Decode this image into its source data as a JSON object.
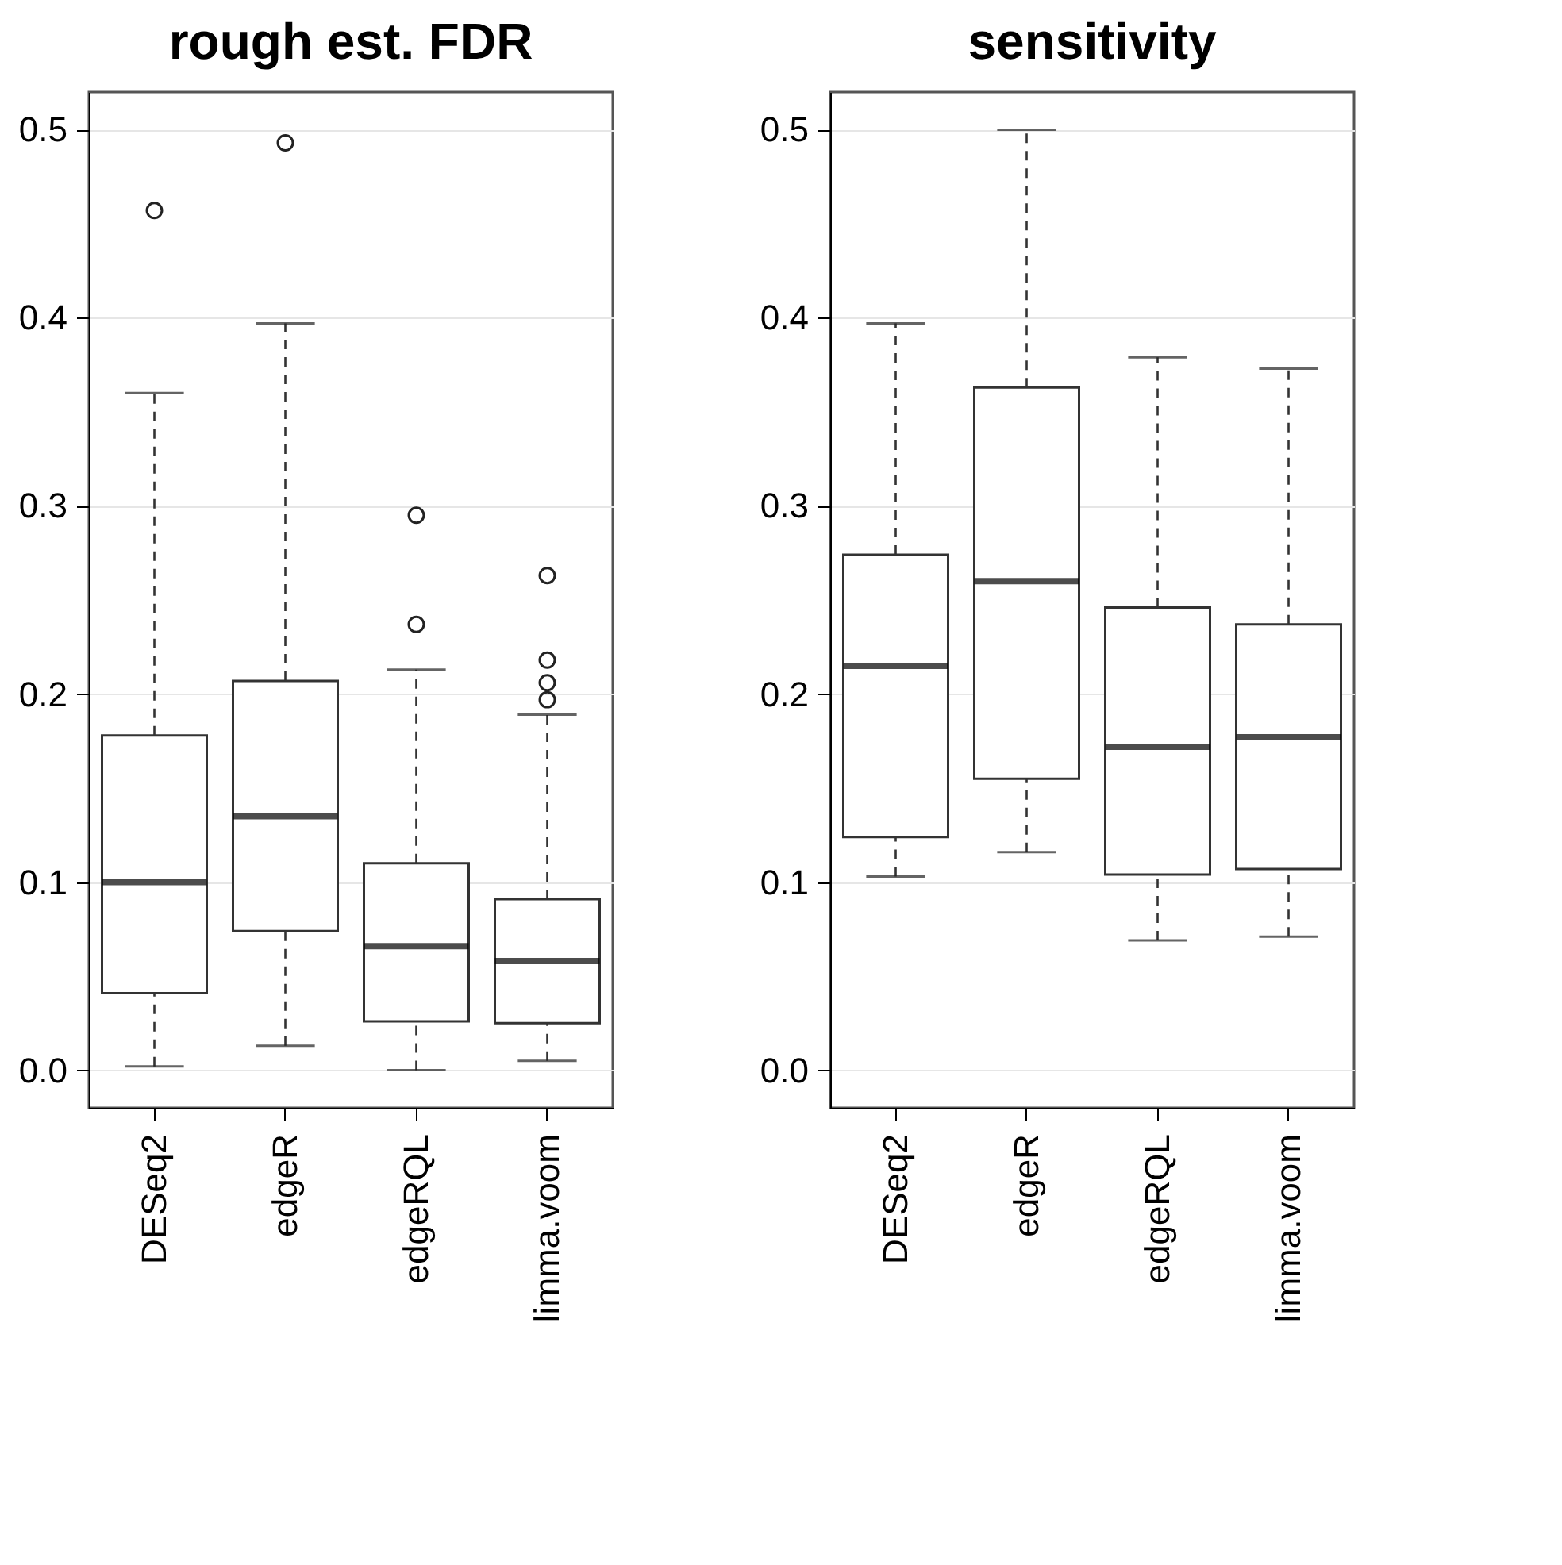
{
  "chart_data": [
    {
      "type": "box",
      "title": "rough est. FDR",
      "categories": [
        "DESeq2",
        "edgeR",
        "edgeRQL",
        "limma.voom"
      ],
      "ylim": [
        -0.02,
        0.52
      ],
      "yticks": [
        {
          "value": 0,
          "label": "0.0"
        },
        0.1,
        0.2,
        0.3,
        0.4,
        0.5
      ],
      "grid": "y",
      "boxes": [
        {
          "low": 0.002,
          "q1": 0.041,
          "median": 0.1,
          "q3": 0.178,
          "high": 0.36,
          "outliers": [
            0.457
          ]
        },
        {
          "low": 0.013,
          "q1": 0.074,
          "median": 0.135,
          "q3": 0.207,
          "high": 0.397,
          "outliers": [
            0.493
          ]
        },
        {
          "low": 0.0,
          "q1": 0.026,
          "median": 0.066,
          "q3": 0.11,
          "high": 0.213,
          "outliers": [
            0.237,
            0.295
          ]
        },
        {
          "low": 0.005,
          "q1": 0.025,
          "median": 0.058,
          "q3": 0.091,
          "high": 0.189,
          "outliers": [
            0.197,
            0.206,
            0.218,
            0.263
          ]
        }
      ]
    },
    {
      "type": "box",
      "title": "sensitivity",
      "categories": [
        "DESeq2",
        "edgeR",
        "edgeRQL",
        "limma.voom"
      ],
      "ylim": [
        -0.02,
        0.52
      ],
      "yticks": [
        {
          "value": 0,
          "label": "0.0"
        },
        0.1,
        0.2,
        0.3,
        0.4,
        0.5
      ],
      "grid": "y",
      "boxes": [
        {
          "low": 0.103,
          "q1": 0.124,
          "median": 0.215,
          "q3": 0.274,
          "high": 0.397
        },
        {
          "low": 0.116,
          "q1": 0.155,
          "median": 0.26,
          "q3": 0.363,
          "high": 0.5
        },
        {
          "low": 0.069,
          "q1": 0.104,
          "median": 0.172,
          "q3": 0.246,
          "high": 0.379
        },
        {
          "low": 0.071,
          "q1": 0.107,
          "median": 0.177,
          "q3": 0.237,
          "high": 0.373
        }
      ]
    }
  ]
}
